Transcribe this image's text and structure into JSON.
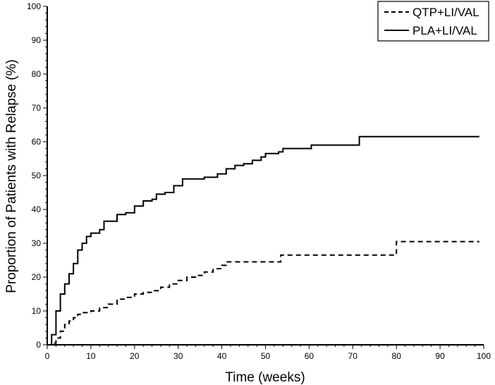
{
  "chart_data": {
    "type": "line",
    "title": "",
    "xlabel": "Time (weeks)",
    "ylabel": "Proportion of Patients with Relapse (%)",
    "xlim": [
      0,
      100
    ],
    "ylim": [
      0,
      100
    ],
    "x_ticks": [
      0,
      10,
      20,
      30,
      40,
      50,
      60,
      70,
      80,
      90,
      100
    ],
    "y_ticks": [
      0,
      10,
      20,
      30,
      40,
      50,
      60,
      70,
      80,
      90,
      100
    ],
    "grid": false,
    "legend_position": "top-right",
    "series": [
      {
        "name": "QTP+LI/VAL",
        "line_style": "dashed",
        "color": "#000000",
        "points": [
          [
            0,
            0
          ],
          [
            1,
            0.5
          ],
          [
            2,
            2
          ],
          [
            3,
            4
          ],
          [
            4,
            6
          ],
          [
            5,
            7
          ],
          [
            6,
            8
          ],
          [
            7,
            9
          ],
          [
            8,
            9.5
          ],
          [
            10,
            10
          ],
          [
            12,
            11
          ],
          [
            14,
            12
          ],
          [
            16,
            13.5
          ],
          [
            18,
            14
          ],
          [
            20,
            15
          ],
          [
            22,
            15.5
          ],
          [
            24,
            16
          ],
          [
            26,
            17
          ],
          [
            28,
            18
          ],
          [
            30,
            19
          ],
          [
            32,
            20
          ],
          [
            34,
            20.5
          ],
          [
            36,
            21.5
          ],
          [
            38,
            22.5
          ],
          [
            40,
            23.5
          ],
          [
            41,
            24.5
          ],
          [
            42,
            24.5
          ],
          [
            53.5,
            24.5
          ],
          [
            53.5,
            26.5
          ],
          [
            80,
            26.5
          ],
          [
            80,
            30.5
          ],
          [
            99,
            30.5
          ]
        ]
      },
      {
        "name": "PLA+LI/VAL",
        "line_style": "solid",
        "color": "#000000",
        "points": [
          [
            0,
            0
          ],
          [
            1,
            3
          ],
          [
            2,
            10
          ],
          [
            3,
            15
          ],
          [
            4,
            18
          ],
          [
            5,
            21
          ],
          [
            6,
            24
          ],
          [
            7,
            28
          ],
          [
            8,
            30
          ],
          [
            9,
            32
          ],
          [
            10,
            33
          ],
          [
            12,
            34
          ],
          [
            13,
            36.5
          ],
          [
            15,
            36.5
          ],
          [
            16,
            38.5
          ],
          [
            18,
            39
          ],
          [
            20,
            41
          ],
          [
            22,
            42.5
          ],
          [
            24,
            43
          ],
          [
            25,
            44.5
          ],
          [
            27,
            45
          ],
          [
            29,
            47
          ],
          [
            31,
            49
          ],
          [
            36,
            49.5
          ],
          [
            39,
            50.5
          ],
          [
            41,
            52
          ],
          [
            43,
            53
          ],
          [
            45,
            53.5
          ],
          [
            47,
            54.5
          ],
          [
            49,
            55.5
          ],
          [
            50,
            56.5
          ],
          [
            53,
            57
          ],
          [
            54,
            58
          ],
          [
            60,
            58
          ],
          [
            60.5,
            59
          ],
          [
            71,
            59
          ],
          [
            71.5,
            61.5
          ],
          [
            99,
            61.5
          ]
        ]
      }
    ]
  }
}
